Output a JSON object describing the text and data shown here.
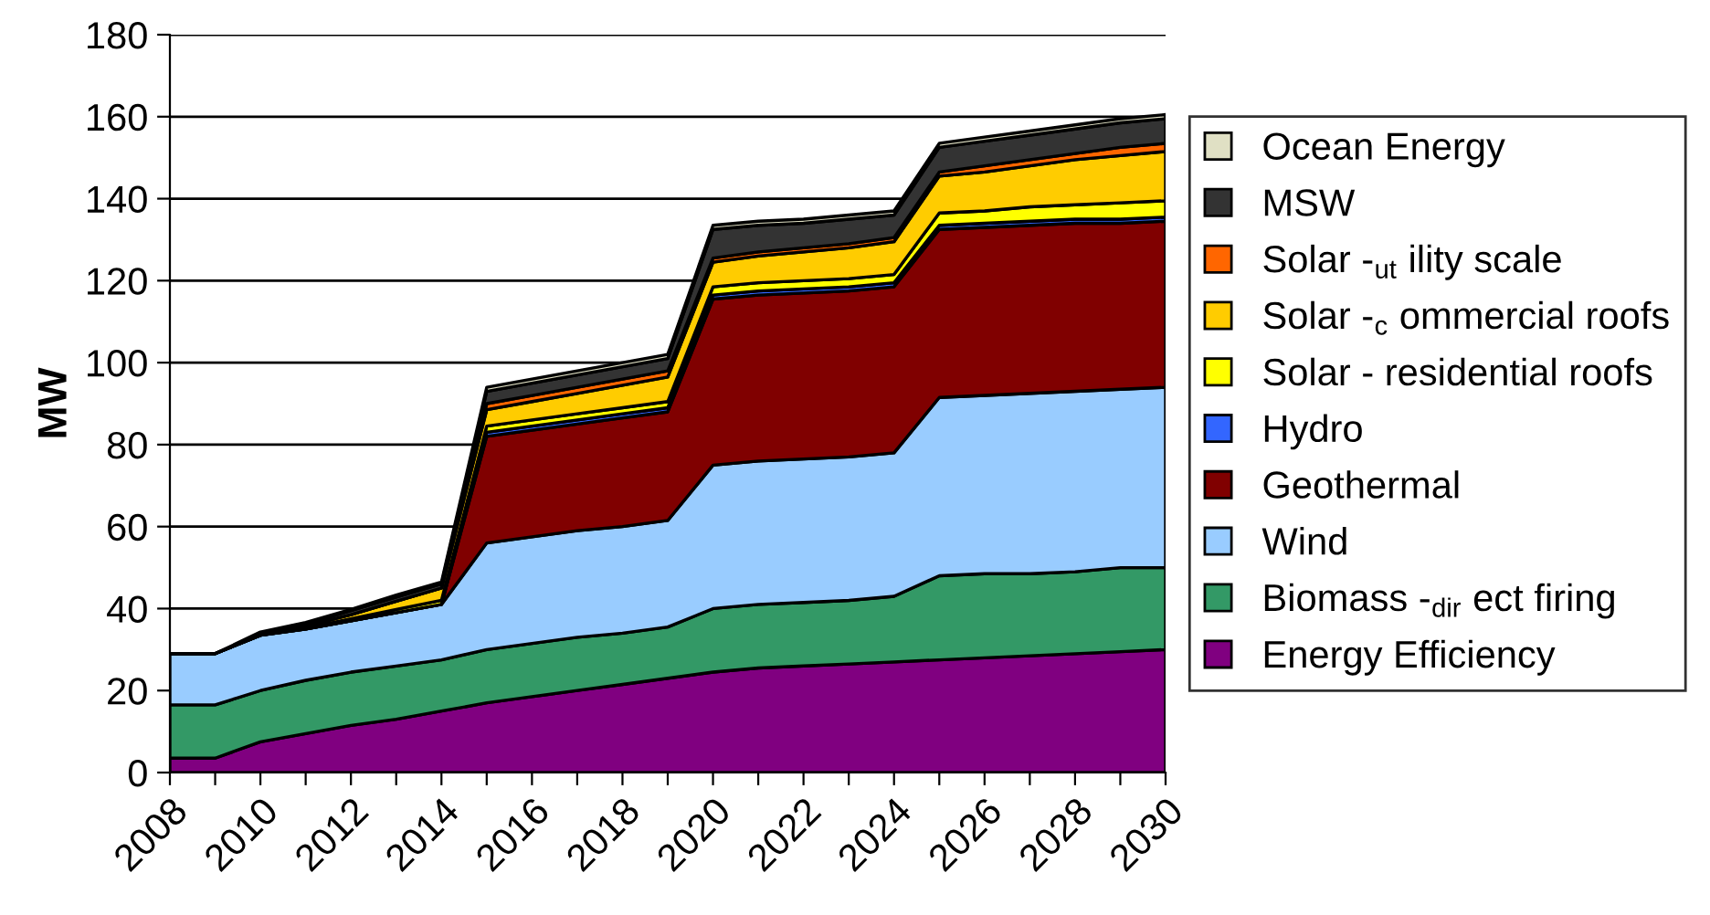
{
  "chart_data": {
    "type": "area",
    "stacked": true,
    "ylabel": "MW",
    "x": [
      2008,
      2009,
      2010,
      2011,
      2012,
      2013,
      2014,
      2015,
      2016,
      2017,
      2018,
      2019,
      2020,
      2021,
      2022,
      2023,
      2024,
      2025,
      2026,
      2027,
      2028,
      2029,
      2030
    ],
    "xlim": [
      2008,
      2030
    ],
    "ylim": [
      0,
      180
    ],
    "yticks": [
      0,
      20,
      40,
      60,
      80,
      100,
      120,
      140,
      160,
      180
    ],
    "xticks": [
      2008,
      {
        "value": 2009,
        "label": null
      },
      2010,
      {
        "value": 2011,
        "label": null
      },
      2012,
      {
        "value": 2013,
        "label": null
      },
      2014,
      {
        "value": 2015,
        "label": null
      },
      2016,
      {
        "value": 2017,
        "label": null
      },
      2018,
      {
        "value": 2019,
        "label": null
      },
      2020,
      {
        "value": 2021,
        "label": null
      },
      2022,
      {
        "value": 2023,
        "label": null
      },
      2024,
      {
        "value": 2025,
        "label": null
      },
      2026,
      {
        "value": 2027,
        "label": null
      },
      2028,
      {
        "value": 2029,
        "label": null
      },
      2030
    ],
    "grid": "y",
    "legend": "right",
    "series": [
      {
        "name": "Energy Efficiency",
        "color": "#800080",
        "values": [
          3.5,
          3.5,
          7.5,
          9.5,
          11.5,
          13,
          15,
          17,
          18.5,
          20,
          21.5,
          23,
          24.5,
          25.5,
          26,
          26.5,
          27,
          27.5,
          28,
          28.5,
          29,
          29.5,
          30
        ]
      },
      {
        "name": "Biomass -$_{dir}$ ect firing",
        "color": "#339966",
        "values": [
          13,
          13,
          12.5,
          13,
          13,
          13,
          12.5,
          13,
          13,
          13,
          12.5,
          12.5,
          15.5,
          15.5,
          15.5,
          15.5,
          16,
          20.5,
          20.5,
          20,
          20,
          20.5,
          20
        ]
      },
      {
        "name": "Wind",
        "color": "#99ccff",
        "values": [
          12.5,
          12.5,
          13.5,
          12.5,
          12.5,
          13,
          13.5,
          26,
          26,
          26,
          26,
          26,
          35,
          35,
          35,
          35,
          35,
          43.5,
          43.5,
          44,
          44,
          43.5,
          44
        ]
      },
      {
        "name": "Geothermal",
        "color": "#800000",
        "values": [
          0,
          0,
          0,
          0,
          0,
          0,
          0,
          26,
          26,
          26,
          26.5,
          26.5,
          40.5,
          40.5,
          40.5,
          40.5,
          40.5,
          41,
          41,
          41,
          41,
          40.5,
          40.5
        ]
      },
      {
        "name": "Hydro",
        "color": "#3366ff",
        "values": [
          0,
          0,
          0,
          0,
          0,
          0,
          0,
          1,
          1,
          1,
          1,
          1,
          1,
          1,
          1,
          1,
          1,
          1,
          1,
          1,
          1,
          1,
          1
        ]
      },
      {
        "name": "Solar - residential roofs",
        "color": "#ffff00",
        "values": [
          0,
          0,
          0,
          0.3,
          0.5,
          0.8,
          1,
          1.5,
          1.5,
          1.5,
          1.5,
          1.5,
          2,
          2,
          2,
          2,
          2,
          3,
          3,
          3.5,
          3.5,
          4,
          4
        ]
      },
      {
        "name": "Solar -$_{c}$ ommercial roofs",
        "color": "#ffcc00",
        "values": [
          0,
          0,
          0,
          0.5,
          1,
          2,
          3,
          4,
          4.5,
          5,
          5.5,
          6,
          6,
          6.5,
          7,
          7.5,
          8,
          9,
          9.5,
          10,
          11,
          11.5,
          12
        ]
      },
      {
        "name": "Solar -$_{ut}$ ility scale",
        "color": "#ff6600",
        "values": [
          0,
          0,
          0,
          0,
          0,
          0,
          0,
          1.5,
          1.5,
          1.5,
          1.5,
          1.5,
          1,
          1,
          1,
          1,
          1,
          1,
          1.5,
          1.5,
          1.5,
          2,
          2
        ]
      },
      {
        "name": "MSW",
        "color": "#333333",
        "values": [
          0,
          0,
          0.5,
          0.5,
          1,
          1,
          1,
          3,
          3,
          3,
          3,
          3,
          7,
          6.5,
          6,
          6,
          5.5,
          6,
          6,
          6,
          6,
          6,
          6
        ]
      },
      {
        "name": "Ocean Energy",
        "color": "#e0e0c4",
        "values": [
          0,
          0,
          0.3,
          0.3,
          0.3,
          0.5,
          0.5,
          1,
          1,
          1,
          1,
          1,
          1,
          1,
          1,
          1,
          1,
          1,
          1,
          1,
          1,
          1,
          1
        ]
      }
    ]
  }
}
